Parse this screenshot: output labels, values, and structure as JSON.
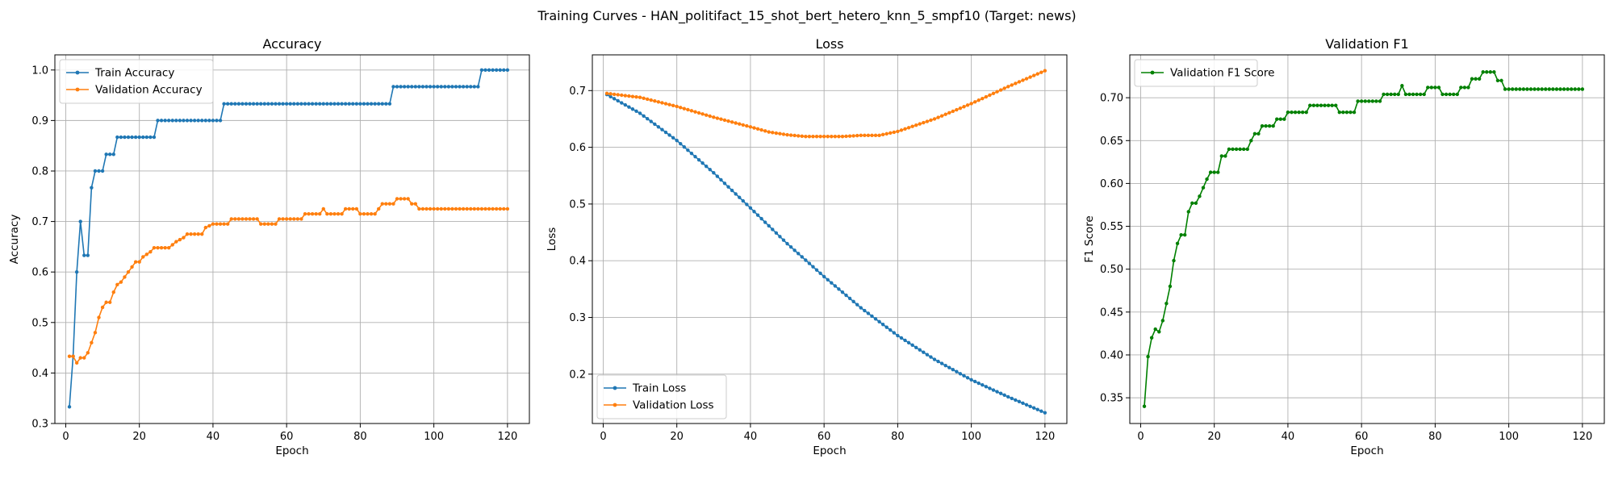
{
  "figure": {
    "title": "Training Curves - HAN_politifact_15_shot_bert_hetero_knn_5_smpf10 (Target: news)"
  },
  "colors": {
    "blue": "#1f77b4",
    "orange": "#ff7f0e",
    "green": "#008000"
  },
  "chart_data": [
    {
      "type": "line",
      "title": "Accuracy",
      "xlabel": "Epoch",
      "ylabel": "Accuracy",
      "xlim": [
        -2.95,
        125.95
      ],
      "ylim": [
        0.3,
        1.03
      ],
      "xticks": [
        0,
        20,
        40,
        60,
        80,
        100,
        120
      ],
      "yticks": [
        0.3,
        0.4,
        0.5,
        0.6,
        0.7,
        0.8,
        0.9,
        1.0
      ],
      "ytick_labels": [
        "0.3",
        "0.4",
        "0.5",
        "0.6",
        "0.7",
        "0.8",
        "0.9",
        "1.0"
      ],
      "grid": true,
      "legend": "upper-left",
      "segments": [
        {
          "name": "Train Accuracy",
          "color": "#1f77b4",
          "points": [
            [
              1,
              0.333
            ],
            [
              2,
              0.433
            ],
            [
              3,
              0.6
            ],
            [
              4,
              0.7
            ],
            [
              5,
              0.633
            ],
            [
              6,
              0.633
            ],
            [
              7,
              0.767
            ],
            [
              8,
              0.8
            ],
            [
              9,
              0.8
            ],
            [
              10,
              0.8
            ],
            [
              11,
              0.833
            ],
            [
              12,
              0.833
            ],
            [
              13,
              0.833
            ],
            [
              14,
              0.867
            ],
            [
              24,
              0.867
            ],
            [
              25,
              0.9
            ],
            [
              42,
              0.9
            ],
            [
              43,
              0.933
            ],
            [
              88,
              0.933
            ],
            [
              89,
              0.967
            ],
            [
              112,
              0.967
            ],
            [
              113,
              1.0
            ],
            [
              120,
              1.0
            ]
          ]
        },
        {
          "name": "Validation Accuracy",
          "color": "#ff7f0e",
          "points": [
            [
              1,
              0.433
            ],
            [
              2,
              0.433
            ],
            [
              3,
              0.42
            ],
            [
              4,
              0.43
            ],
            [
              5,
              0.43
            ],
            [
              6,
              0.44
            ],
            [
              7,
              0.46
            ],
            [
              8,
              0.48
            ],
            [
              9,
              0.51
            ],
            [
              10,
              0.53
            ],
            [
              11,
              0.54
            ],
            [
              12,
              0.54
            ],
            [
              13,
              0.56
            ],
            [
              14,
              0.575
            ],
            [
              15,
              0.58
            ],
            [
              16,
              0.59
            ],
            [
              17,
              0.6
            ],
            [
              18,
              0.61
            ],
            [
              19,
              0.62
            ],
            [
              20,
              0.62
            ],
            [
              21,
              0.63
            ],
            [
              22,
              0.635
            ],
            [
              23,
              0.64
            ],
            [
              24,
              0.648
            ],
            [
              28,
              0.648
            ],
            [
              30,
              0.66
            ],
            [
              32,
              0.668
            ],
            [
              33,
              0.675
            ],
            [
              37,
              0.675
            ],
            [
              38,
              0.688
            ],
            [
              40,
              0.695
            ],
            [
              44,
              0.695
            ],
            [
              45,
              0.705
            ],
            [
              52,
              0.705
            ],
            [
              53,
              0.695
            ],
            [
              57,
              0.695
            ],
            [
              58,
              0.705
            ],
            [
              64,
              0.705
            ],
            [
              65,
              0.715
            ],
            [
              69,
              0.715
            ],
            [
              70,
              0.725
            ],
            [
              71,
              0.715
            ],
            [
              75,
              0.715
            ],
            [
              76,
              0.725
            ],
            [
              79,
              0.725
            ],
            [
              80,
              0.715
            ],
            [
              84,
              0.715
            ],
            [
              85,
              0.725
            ],
            [
              86,
              0.735
            ],
            [
              89,
              0.735
            ],
            [
              90,
              0.745
            ],
            [
              93,
              0.745
            ],
            [
              94,
              0.735
            ],
            [
              95,
              0.735
            ],
            [
              96,
              0.725
            ],
            [
              120,
              0.725
            ]
          ]
        }
      ]
    },
    {
      "type": "line",
      "title": "Loss",
      "xlabel": "Epoch",
      "ylabel": "Loss",
      "xlim": [
        -2.95,
        125.95
      ],
      "ylim": [
        0.113,
        0.763
      ],
      "xticks": [
        0,
        20,
        40,
        60,
        80,
        100,
        120
      ],
      "yticks": [
        0.2,
        0.3,
        0.4,
        0.5,
        0.6,
        0.7
      ],
      "ytick_labels": [
        "0.2",
        "0.3",
        "0.4",
        "0.5",
        "0.6",
        "0.7"
      ],
      "grid": true,
      "legend": "lower-left",
      "segments": [
        {
          "name": "Train Loss",
          "color": "#1f77b4",
          "points": [
            [
              1,
              0.693
            ],
            [
              10,
              0.66
            ],
            [
              20,
              0.612
            ],
            [
              30,
              0.555
            ],
            [
              40,
              0.493
            ],
            [
              50,
              0.43
            ],
            [
              60,
              0.372
            ],
            [
              70,
              0.317
            ],
            [
              80,
              0.268
            ],
            [
              90,
              0.226
            ],
            [
              100,
              0.19
            ],
            [
              110,
              0.16
            ],
            [
              120,
              0.132
            ]
          ]
        },
        {
          "name": "Validation Loss",
          "color": "#ff7f0e",
          "points": [
            [
              1,
              0.695
            ],
            [
              10,
              0.688
            ],
            [
              20,
              0.672
            ],
            [
              30,
              0.653
            ],
            [
              40,
              0.636
            ],
            [
              45,
              0.627
            ],
            [
              50,
              0.622
            ],
            [
              55,
              0.619
            ],
            [
              60,
              0.619
            ],
            [
              65,
              0.619
            ],
            [
              70,
              0.621
            ],
            [
              75,
              0.621
            ],
            [
              80,
              0.628
            ],
            [
              90,
              0.65
            ],
            [
              100,
              0.677
            ],
            [
              110,
              0.707
            ],
            [
              120,
              0.735
            ]
          ]
        }
      ]
    },
    {
      "type": "line",
      "title": "Validation F1",
      "xlabel": "Epoch",
      "ylabel": "F1 Score",
      "xlim": [
        -2.95,
        125.95
      ],
      "ylim": [
        0.32,
        0.75
      ],
      "xticks": [
        0,
        20,
        40,
        60,
        80,
        100,
        120
      ],
      "yticks": [
        0.35,
        0.4,
        0.45,
        0.5,
        0.55,
        0.6,
        0.65,
        0.7
      ],
      "ytick_labels": [
        "0.35",
        "0.40",
        "0.45",
        "0.50",
        "0.55",
        "0.60",
        "0.65",
        "0.70"
      ],
      "grid": true,
      "legend": "upper-left",
      "segments": [
        {
          "name": "Validation F1 Score",
          "color": "#008000",
          "points": [
            [
              1,
              0.34
            ],
            [
              2,
              0.398
            ],
            [
              3,
              0.42
            ],
            [
              4,
              0.43
            ],
            [
              5,
              0.427
            ],
            [
              6,
              0.44
            ],
            [
              7,
              0.46
            ],
            [
              8,
              0.48
            ],
            [
              9,
              0.51
            ],
            [
              10,
              0.53
            ],
            [
              11,
              0.54
            ],
            [
              12,
              0.54
            ],
            [
              13,
              0.567
            ],
            [
              14,
              0.577
            ],
            [
              15,
              0.577
            ],
            [
              16,
              0.585
            ],
            [
              17,
              0.595
            ],
            [
              18,
              0.605
            ],
            [
              19,
              0.613
            ],
            [
              21,
              0.613
            ],
            [
              22,
              0.632
            ],
            [
              23,
              0.632
            ],
            [
              24,
              0.64
            ],
            [
              29,
              0.64
            ],
            [
              30,
              0.65
            ],
            [
              31,
              0.658
            ],
            [
              32,
              0.658
            ],
            [
              33,
              0.667
            ],
            [
              36,
              0.667
            ],
            [
              37,
              0.675
            ],
            [
              39,
              0.675
            ],
            [
              40,
              0.683
            ],
            [
              45,
              0.683
            ],
            [
              46,
              0.691
            ],
            [
              53,
              0.691
            ],
            [
              54,
              0.683
            ],
            [
              58,
              0.683
            ],
            [
              59,
              0.696
            ],
            [
              65,
              0.696
            ],
            [
              66,
              0.704
            ],
            [
              70,
              0.704
            ],
            [
              71,
              0.714
            ],
            [
              72,
              0.704
            ],
            [
              77,
              0.704
            ],
            [
              78,
              0.712
            ],
            [
              81,
              0.712
            ],
            [
              82,
              0.704
            ],
            [
              86,
              0.704
            ],
            [
              87,
              0.712
            ],
            [
              89,
              0.712
            ],
            [
              90,
              0.722
            ],
            [
              92,
              0.722
            ],
            [
              93,
              0.73
            ],
            [
              96,
              0.73
            ],
            [
              97,
              0.72
            ],
            [
              98,
              0.72
            ],
            [
              99,
              0.71
            ],
            [
              120,
              0.71
            ]
          ]
        }
      ]
    }
  ]
}
